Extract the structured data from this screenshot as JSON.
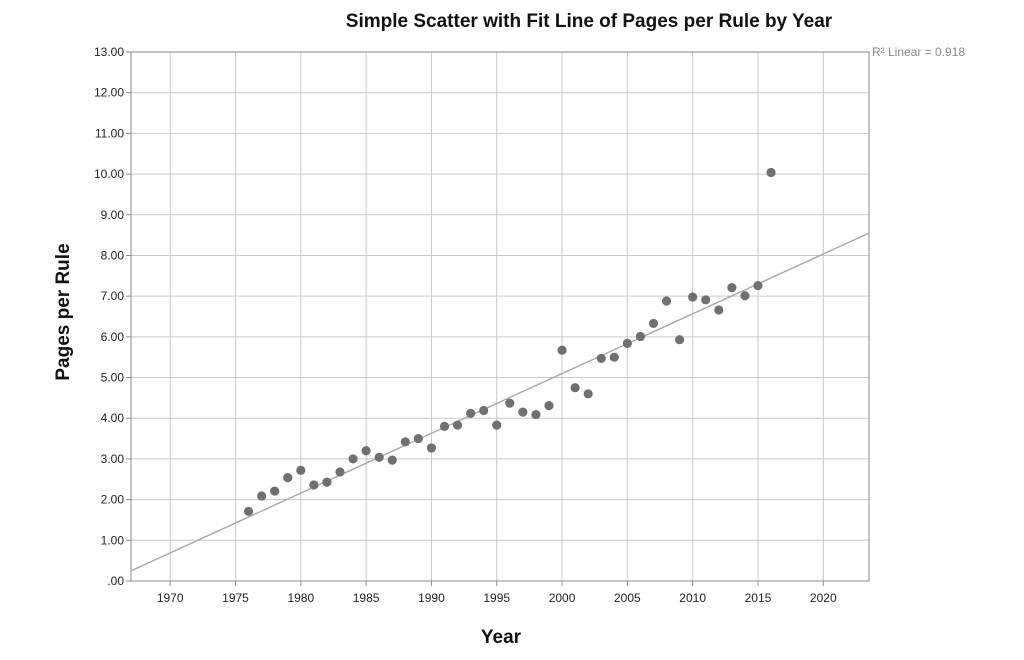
{
  "chart_data": {
    "type": "scatter",
    "title": "Simple Scatter with Fit Line of Pages per Rule by Year",
    "xlabel": "Year",
    "ylabel": "Pages per Rule",
    "xlim": [
      1967,
      2023.5
    ],
    "ylim": [
      0,
      13
    ],
    "x_ticks": [
      1970,
      1975,
      1980,
      1985,
      1990,
      1995,
      2000,
      2005,
      2010,
      2015,
      2020
    ],
    "x_tick_labels": [
      "1970",
      "1975",
      "1980",
      "1985",
      "1990",
      "1995",
      "2000",
      "2005",
      "2010",
      "2015",
      "2020"
    ],
    "y_ticks": [
      0,
      1,
      2,
      3,
      4,
      5,
      6,
      7,
      8,
      9,
      10,
      11,
      12,
      13
    ],
    "y_tick_labels": [
      ".00",
      "1.00",
      "2.00",
      "3.00",
      "4.00",
      "5.00",
      "6.00",
      "7.00",
      "8.00",
      "9.00",
      "10.00",
      "11.00",
      "12.00",
      "13.00"
    ],
    "grid": true,
    "fit_line": {
      "label": "R² Linear = 0.918",
      "points": [
        [
          1967,
          0.25
        ],
        [
          2023.5,
          8.55
        ]
      ]
    },
    "points": [
      {
        "x": 1976,
        "y": 1.71
      },
      {
        "x": 1977,
        "y": 2.09
      },
      {
        "x": 1978,
        "y": 2.21
      },
      {
        "x": 1979,
        "y": 2.54
      },
      {
        "x": 1980,
        "y": 2.72
      },
      {
        "x": 1981,
        "y": 2.36
      },
      {
        "x": 1982,
        "y": 2.43
      },
      {
        "x": 1983,
        "y": 2.68
      },
      {
        "x": 1984,
        "y": 3.0
      },
      {
        "x": 1985,
        "y": 3.2
      },
      {
        "x": 1986,
        "y": 3.04
      },
      {
        "x": 1987,
        "y": 2.97
      },
      {
        "x": 1988,
        "y": 3.42
      },
      {
        "x": 1989,
        "y": 3.5
      },
      {
        "x": 1990,
        "y": 3.27
      },
      {
        "x": 1991,
        "y": 3.8
      },
      {
        "x": 1992,
        "y": 3.83
      },
      {
        "x": 1993,
        "y": 4.12
      },
      {
        "x": 1994,
        "y": 4.19
      },
      {
        "x": 1995,
        "y": 3.83
      },
      {
        "x": 1996,
        "y": 4.37
      },
      {
        "x": 1997,
        "y": 4.15
      },
      {
        "x": 1998,
        "y": 4.09
      },
      {
        "x": 1999,
        "y": 4.31
      },
      {
        "x": 2000,
        "y": 5.67
      },
      {
        "x": 2001,
        "y": 4.75
      },
      {
        "x": 2002,
        "y": 4.6
      },
      {
        "x": 2003,
        "y": 5.47
      },
      {
        "x": 2004,
        "y": 5.5
      },
      {
        "x": 2005,
        "y": 5.84
      },
      {
        "x": 2006,
        "y": 6.01
      },
      {
        "x": 2007,
        "y": 6.33
      },
      {
        "x": 2008,
        "y": 6.88
      },
      {
        "x": 2009,
        "y": 5.93
      },
      {
        "x": 2010,
        "y": 6.98
      },
      {
        "x": 2011,
        "y": 6.91
      },
      {
        "x": 2012,
        "y": 6.66
      },
      {
        "x": 2013,
        "y": 7.21
      },
      {
        "x": 2014,
        "y": 7.01
      },
      {
        "x": 2015,
        "y": 7.26
      },
      {
        "x": 2016,
        "y": 10.04
      }
    ]
  }
}
